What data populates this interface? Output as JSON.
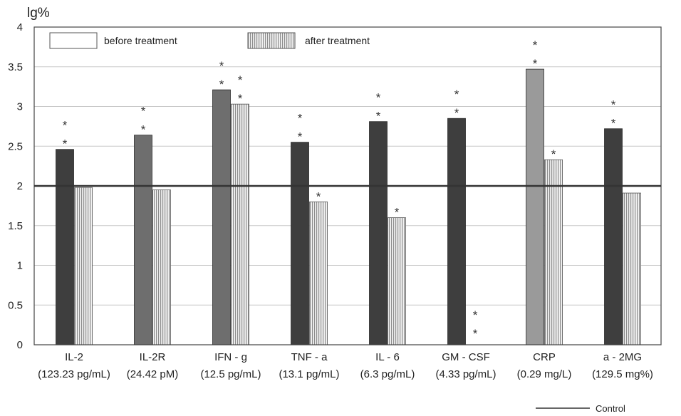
{
  "chart_data": {
    "type": "bar",
    "ylabel": "lg%",
    "ylim": [
      0,
      4
    ],
    "yticks": [
      "0",
      "0.5",
      "1",
      "1.5",
      "2",
      "2.5",
      "3",
      "3.5",
      "4"
    ],
    "grid": true,
    "legend_position": "top",
    "categories": [
      "IL-2",
      "IL-2R",
      "IFN - g",
      "TNF - a",
      "IL - 6",
      "GM - CSF",
      "CRP",
      "a - 2MG"
    ],
    "category_units": [
      "(123.23 pg/mL)",
      "(24.42 pM)",
      "(12.5 pg/mL)",
      "(13.1 pg/mL)",
      "(6.3 pg/mL)",
      "(4.33 pg/mL)",
      "(0.29 mg/L)",
      "(129.5 mg%)"
    ],
    "series": [
      {
        "name": "before treatment",
        "values": [
          2.46,
          2.64,
          3.21,
          2.55,
          2.81,
          2.85,
          3.47,
          2.72
        ],
        "annotations": [
          "**",
          "**",
          "**",
          "**",
          "**",
          "**",
          "**",
          "**"
        ]
      },
      {
        "name": "after treatment",
        "values": [
          1.98,
          1.95,
          3.03,
          1.8,
          1.6,
          null,
          2.33,
          1.91
        ],
        "annotations": [
          "",
          "",
          "**",
          "*",
          "*",
          "**",
          "*",
          ""
        ]
      }
    ],
    "reference_line": {
      "value": 2,
      "label": "Control"
    },
    "colors": {
      "before_dark": "#3e3e3e",
      "before_medium": "#6e6e6e",
      "before_light": "#9a9a9a",
      "after_stripe": "#8c8c8c",
      "after_bg": "#f2f2f2",
      "grid": "#c8c8c8",
      "axis": "#444444"
    },
    "before_shade": [
      "dark",
      "medium",
      "medium",
      "dark",
      "dark",
      "dark",
      "light",
      "dark"
    ]
  }
}
